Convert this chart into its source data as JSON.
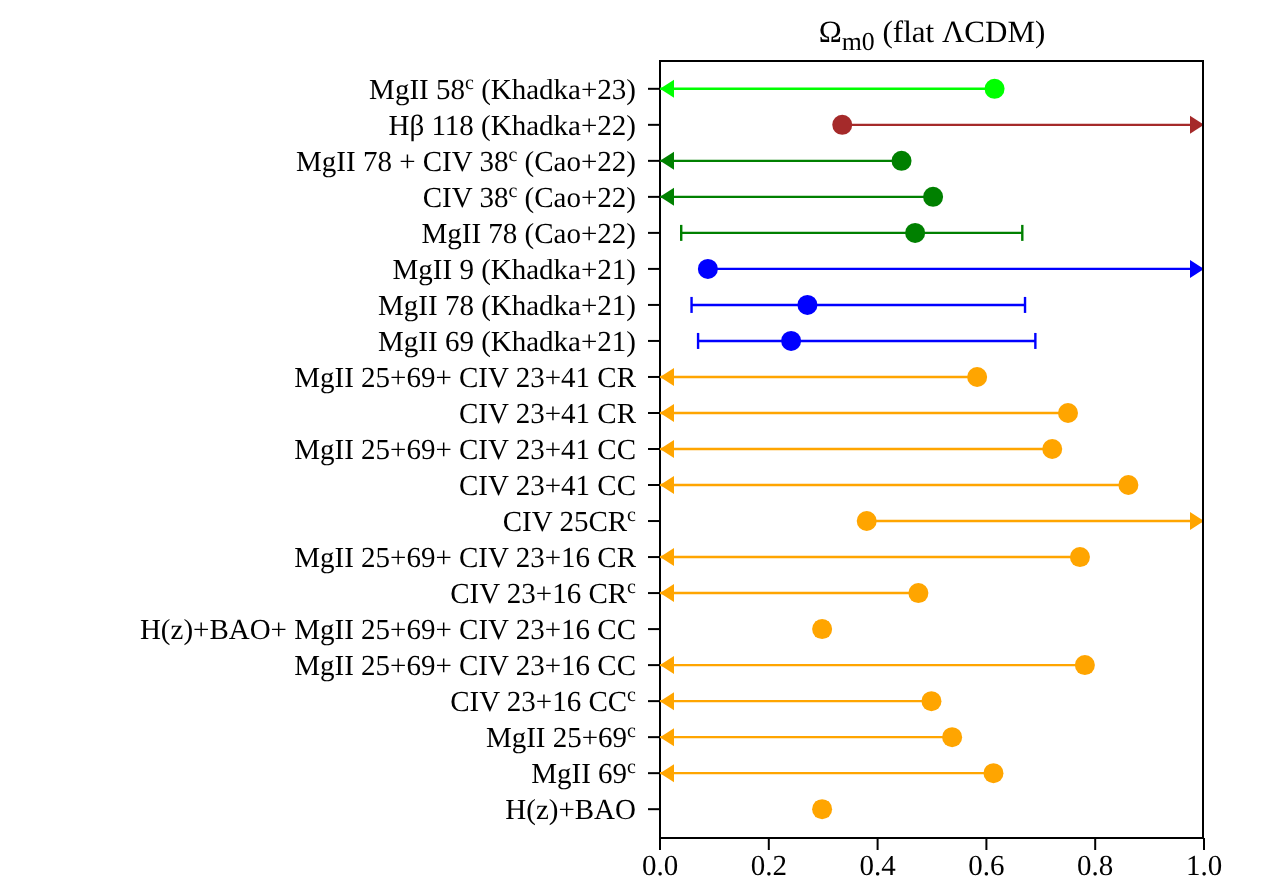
{
  "chart_data": {
    "type": "scatter",
    "orientation": "horizontal",
    "title": "Ω$_{m0}$ (flat ΛCDM)",
    "marker": "circle",
    "categories": [
      "MgII 58$^{c}$ (Khadka+23)",
      "Hβ 118 (Khadka+22)",
      "MgII 78 + CIV 38$^{c}$ (Cao+22)",
      "CIV 38$^{c}$ (Cao+22)",
      "MgII 78 (Cao+22)",
      "MgII 9 (Khadka+21)",
      "MgII 78 (Khadka+21)",
      "MgII 69 (Khadka+21)",
      "MgII 25+69+ CIV 23+41 CR",
      "CIV 23+41 CR",
      "MgII 25+69+ CIV 23+41 CC",
      "CIV 23+41 CC",
      "CIV 25CR$^{c}$",
      "MgII 25+69+ CIV 23+16 CR",
      "CIV 23+16 CR$^{c}$",
      "H(z)+BAO+ MgII 25+69+ CIV 23+16 CC",
      "MgII 25+69+ CIV 23+16 CC",
      "CIV 23+16 CC$^{c}$",
      "MgII 25+69$^{c}$",
      "MgII 69$^{c}$",
      "H(z)+BAO"
    ],
    "values": [
      0.615,
      0.335,
      0.444,
      0.502,
      0.469,
      0.088,
      0.271,
      0.241,
      0.583,
      0.75,
      0.721,
      0.861,
      0.38,
      0.772,
      0.475,
      0.298,
      0.781,
      0.499,
      0.537,
      0.613,
      0.298
    ],
    "errors": [
      [
        0,
        0.615
      ],
      [
        0.335,
        1.0
      ],
      [
        0,
        0.444
      ],
      [
        0,
        0.502
      ],
      [
        0.039,
        0.666
      ],
      [
        0.088,
        1.0
      ],
      [
        0.058,
        0.671
      ],
      [
        0.07,
        0.69
      ],
      [
        0,
        0.583
      ],
      [
        0,
        0.75
      ],
      [
        0,
        0.721
      ],
      [
        0,
        0.861
      ],
      [
        0.38,
        1.0
      ],
      [
        0,
        0.772
      ],
      [
        0,
        0.475
      ],
      [
        0.288,
        0.308
      ],
      [
        0,
        0.781
      ],
      [
        0,
        0.499
      ],
      [
        0,
        0.537
      ],
      [
        0,
        0.613
      ],
      [
        0.288,
        0.308
      ]
    ],
    "colors": [
      "#00ff00",
      "#a52a2a",
      "#008000",
      "#008000",
      "#008000",
      "#0000ff",
      "#0000ff",
      "#0000ff",
      "#ffa500",
      "#ffa500",
      "#ffa500",
      "#ffa500",
      "#ffa500",
      "#ffa500",
      "#ffa500",
      "#ffa500",
      "#ffa500",
      "#ffa500",
      "#ffa500",
      "#ffa500",
      "#ffa500"
    ],
    "xlim": [
      0,
      1.0
    ],
    "xticks": [
      {
        "value": 0,
        "label": "0.0"
      },
      {
        "value": 0.2,
        "label": "0.2"
      },
      {
        "value": 0.4,
        "label": "0.4"
      },
      {
        "value": 0.6,
        "label": "0.6"
      },
      {
        "value": 0.8,
        "label": "0.8"
      },
      {
        "value": 1.0,
        "label": "1.0"
      }
    ]
  }
}
